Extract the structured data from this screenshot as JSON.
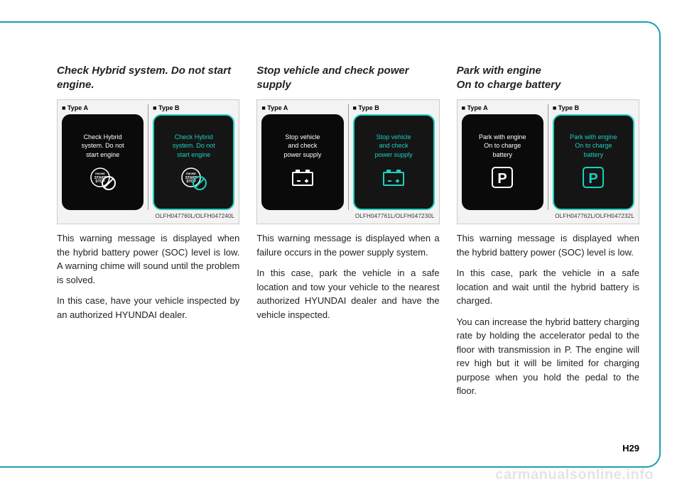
{
  "page_number": "H29",
  "watermark": "carmanualsonline.info",
  "columns": [
    {
      "heading": "Check Hybrid system. Do not start engine.",
      "type_a_label": "■ Type A",
      "type_b_label": "■ Type B",
      "screen_text_a": "Check Hybrid\nsystem. Do not\nstart engine",
      "screen_text_b": "Check Hybrid\nsystem. Do not\nstart engine",
      "icon_type": "startstop",
      "image_code": "OLFH047760L/OLFH047240L",
      "paragraphs": [
        "This warning message is displayed when the hybrid battery power (SOC)  level is low. A warning chime will sound until the problem is solved.",
        "In this case, have your vehicle inspected by an authorized HYUNDAI dealer."
      ]
    },
    {
      "heading": "Stop vehicle and check power supply",
      "type_a_label": "■ Type A",
      "type_b_label": "■ Type B",
      "screen_text_a": "Stop vehicle\nand check\npower supply",
      "screen_text_b": "Stop vehicle\nand check\npower supply",
      "icon_type": "battery",
      "image_code": "OLFH047761L/OLFH047230L",
      "paragraphs": [
        "This warning message is displayed when a failure occurs in the power supply system.",
        "In this case, park the vehicle in a safe location and tow your vehicle to the nearest authorized HYUNDAI dealer and have the vehicle inspected."
      ]
    },
    {
      "heading": "Park with engine\nOn to charge battery",
      "type_a_label": "■ Type A",
      "type_b_label": "■ Type B",
      "screen_text_a": "Park with engine\nOn to charge\nbattery",
      "screen_text_b": "Park with engine\nOn to charge\nbattery",
      "icon_type": "park",
      "image_code": "OLFH047762L/OLFH047232L",
      "paragraphs": [
        "This warning message is displayed when the hybrid battery power (SOC) level is low.",
        "In this case, park the vehicle in a safe location and wait until the hybrid battery is charged.",
        "You can increase the hybrid battery charging rate by holding the accelerator pedal to the floor with transmission in P. The engine will rev high but it will be limited for charging purpose when you hold the pedal to the floor."
      ]
    }
  ],
  "colors": {
    "border": "#1a9fb5",
    "cyan": "#1bd0c0",
    "screen_bg": "#0a0a0a"
  }
}
